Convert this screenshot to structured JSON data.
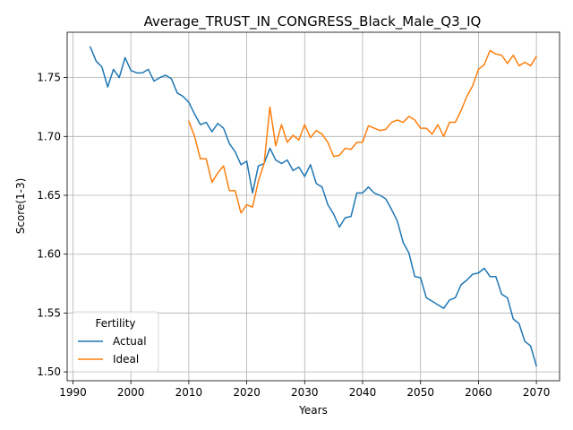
{
  "chart_data": {
    "type": "line",
    "title": "Average_TRUST_IN_CONGRESS_Black_Male_Q3_IQ",
    "xlabel": "Years",
    "ylabel": "Score(1-3)",
    "xlim": [
      1989,
      2074
    ],
    "ylim": [
      1.4925,
      1.7885
    ],
    "xticks": [
      1990,
      2000,
      2010,
      2020,
      2030,
      2040,
      2050,
      2060,
      2070
    ],
    "yticks": [
      1.5,
      1.55,
      1.6,
      1.65,
      1.7,
      1.75
    ],
    "xtick_labels": [
      "1990",
      "2000",
      "2010",
      "2020",
      "2030",
      "2040",
      "2050",
      "2060",
      "2070"
    ],
    "ytick_labels": [
      "1.50",
      "1.55",
      "1.60",
      "1.65",
      "1.70",
      "1.75"
    ],
    "grid": true,
    "legend": {
      "title": "Fertility",
      "placement": "lower-left"
    },
    "series": [
      {
        "name": "Actual",
        "color": "#1f77b4",
        "x": [
          1993,
          1994,
          1995,
          1996,
          1997,
          1998,
          1999,
          2000,
          2001,
          2002,
          2003,
          2004,
          2005,
          2006,
          2007,
          2008,
          2009,
          2010,
          2011,
          2012,
          2013,
          2014,
          2015,
          2016,
          2017,
          2018,
          2019,
          2020,
          2021,
          2022,
          2023,
          2024,
          2025,
          2026,
          2027,
          2028,
          2029,
          2030,
          2031,
          2032,
          2033,
          2034,
          2035,
          2036,
          2037,
          2038,
          2039,
          2040,
          2041,
          2042,
          2043,
          2044,
          2045,
          2046,
          2047,
          2048,
          2049,
          2050,
          2051,
          2052,
          2053,
          2054,
          2055,
          2056,
          2057,
          2058,
          2059,
          2060,
          2061,
          2062,
          2063,
          2064,
          2065,
          2066,
          2067,
          2068,
          2069,
          2070
        ],
        "y": [
          1.776,
          1.764,
          1.759,
          1.742,
          1.757,
          1.75,
          1.767,
          1.756,
          1.754,
          1.754,
          1.757,
          1.747,
          1.75,
          1.752,
          1.749,
          1.737,
          1.734,
          1.729,
          1.719,
          1.71,
          1.712,
          1.704,
          1.711,
          1.707,
          1.694,
          1.687,
          1.676,
          1.679,
          1.652,
          1.675,
          1.677,
          1.69,
          1.68,
          1.677,
          1.68,
          1.671,
          1.674,
          1.666,
          1.676,
          1.66,
          1.657,
          1.642,
          1.634,
          1.623,
          1.631,
          1.632,
          1.652,
          1.652,
          1.657,
          1.652,
          1.65,
          1.647,
          1.638,
          1.628,
          1.61,
          1.601,
          1.581,
          1.58,
          1.563,
          1.56,
          1.557,
          1.554,
          1.561,
          1.563,
          1.574,
          1.578,
          1.583,
          1.584,
          1.588,
          1.581,
          1.581,
          1.566,
          1.563,
          1.545,
          1.541,
          1.526,
          1.522,
          1.505
        ]
      },
      {
        "name": "Ideal",
        "color": "#ff7f0e",
        "x": [
          2010,
          2011,
          2012,
          2013,
          2014,
          2015,
          2016,
          2017,
          2018,
          2019,
          2020,
          2021,
          2022,
          2023,
          2024,
          2025,
          2026,
          2027,
          2028,
          2029,
          2030,
          2031,
          2032,
          2033,
          2034,
          2035,
          2036,
          2037,
          2038,
          2039,
          2040,
          2041,
          2042,
          2043,
          2044,
          2045,
          2046,
          2047,
          2048,
          2049,
          2050,
          2051,
          2052,
          2053,
          2054,
          2055,
          2056,
          2057,
          2058,
          2059,
          2060,
          2061,
          2062,
          2063,
          2064,
          2065,
          2066,
          2067,
          2068,
          2069,
          2070
        ],
        "y": [
          1.713,
          1.7,
          1.681,
          1.681,
          1.661,
          1.669,
          1.675,
          1.654,
          1.654,
          1.635,
          1.642,
          1.64,
          1.662,
          1.677,
          1.725,
          1.692,
          1.71,
          1.695,
          1.701,
          1.697,
          1.71,
          1.699,
          1.705,
          1.702,
          1.695,
          1.683,
          1.684,
          1.69,
          1.689,
          1.695,
          1.695,
          1.709,
          1.707,
          1.705,
          1.706,
          1.712,
          1.714,
          1.712,
          1.717,
          1.714,
          1.707,
          1.707,
          1.702,
          1.71,
          1.7,
          1.712,
          1.712,
          1.722,
          1.734,
          1.743,
          1.757,
          1.761,
          1.773,
          1.77,
          1.769,
          1.762,
          1.769,
          1.76,
          1.763,
          1.76,
          1.768
        ]
      }
    ]
  }
}
